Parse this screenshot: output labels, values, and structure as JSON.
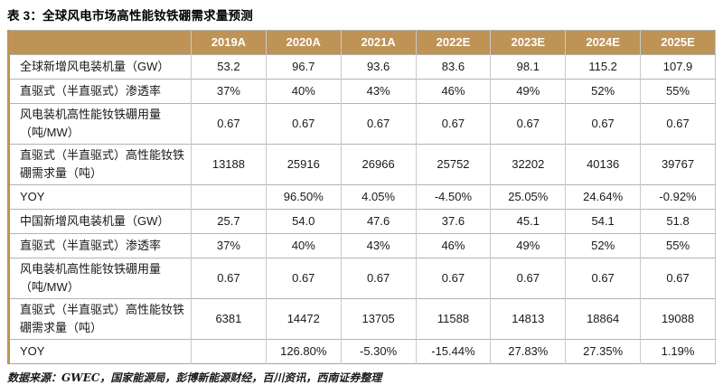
{
  "title": "表 3：全球风电市场高性能钕铁硼需求量预测",
  "source": "数据来源：GWEC，国家能源局，彭博新能源财经，百川资讯，西南证券整理",
  "colors": {
    "header_bg": "#BE9355",
    "header_text": "#FFFFFF",
    "accent_border": "#BE9355",
    "grid_line": "#B3B3B3",
    "body_text": "#1A1A1A"
  },
  "chart_data": {
    "type": "table",
    "columns": [
      "",
      "2019A",
      "2020A",
      "2021A",
      "2022E",
      "2023E",
      "2024E",
      "2025E"
    ],
    "rows": [
      {
        "label": "全球新增风电装机量（GW）",
        "values": [
          "53.2",
          "96.7",
          "93.6",
          "83.6",
          "98.1",
          "115.2",
          "107.9"
        ]
      },
      {
        "label": "直驱式（半直驱式）渗透率",
        "values": [
          "37%",
          "40%",
          "43%",
          "46%",
          "49%",
          "52%",
          "55%"
        ]
      },
      {
        "label": "风电装机高性能钕铁硼用量（吨/MW）",
        "values": [
          "0.67",
          "0.67",
          "0.67",
          "0.67",
          "0.67",
          "0.67",
          "0.67"
        ]
      },
      {
        "label": "直驱式（半直驱式）高性能钕铁硼需求量（吨）",
        "values": [
          "13188",
          "25916",
          "26966",
          "25752",
          "32202",
          "40136",
          "39767"
        ]
      },
      {
        "label": "YOY",
        "values": [
          "",
          "96.50%",
          "4.05%",
          "-4.50%",
          "25.05%",
          "24.64%",
          "-0.92%"
        ]
      },
      {
        "label": "中国新增风电装机量（GW）",
        "values": [
          "25.7",
          "54.0",
          "47.6",
          "37.6",
          "45.1",
          "54.1",
          "51.8"
        ]
      },
      {
        "label": "直驱式（半直驱式）渗透率",
        "values": [
          "37%",
          "40%",
          "43%",
          "46%",
          "49%",
          "52%",
          "55%"
        ]
      },
      {
        "label": "风电装机高性能钕铁硼用量（吨/MW）",
        "values": [
          "0.67",
          "0.67",
          "0.67",
          "0.67",
          "0.67",
          "0.67",
          "0.67"
        ]
      },
      {
        "label": "直驱式（半直驱式）高性能钕铁硼需求量（吨）",
        "values": [
          "6381",
          "14472",
          "13705",
          "11588",
          "14813",
          "18864",
          "19088"
        ]
      },
      {
        "label": "YOY",
        "values": [
          "",
          "126.80%",
          "-5.30%",
          "-15.44%",
          "27.83%",
          "27.35%",
          "1.19%"
        ]
      }
    ]
  }
}
